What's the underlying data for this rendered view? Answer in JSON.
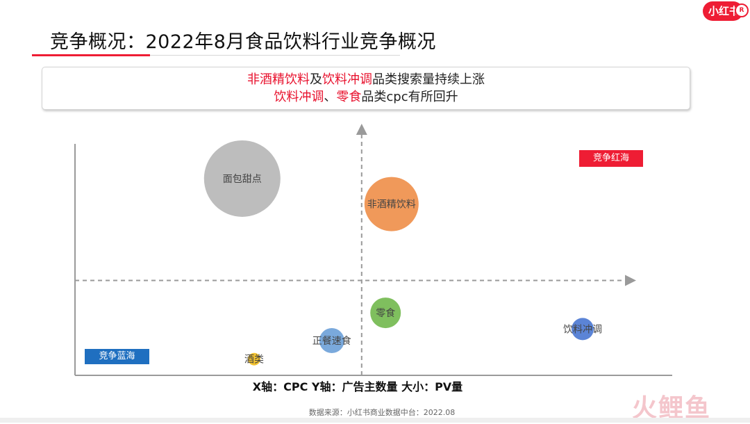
{
  "brand": {
    "logo": "小红书",
    "badge": "R"
  },
  "title": "竞争概况：2022年8月食品饮料行业竞争概况",
  "callout": {
    "line1": [
      {
        "text": "非酒精饮料",
        "highlight": true
      },
      {
        "text": "及",
        "highlight": false
      },
      {
        "text": "饮料冲调",
        "highlight": true
      },
      {
        "text": "品类搜索量持续上涨",
        "highlight": false
      }
    ],
    "line2": [
      {
        "text": "饮料冲调",
        "highlight": true
      },
      {
        "text": "、",
        "highlight": false
      },
      {
        "text": "零食",
        "highlight": true
      },
      {
        "text": "品类cpc有所回升",
        "highlight": false
      }
    ]
  },
  "quadrant_tags": {
    "red_ocean": "竞争红海",
    "blue_ocean": "竞争蓝海"
  },
  "axis_note": "X轴：CPC  Y轴：广告主数量  大小：PV量",
  "source": "数据来源：小红书商业数据中台：2022.08",
  "watermark": "火鲤鱼",
  "colors": {
    "accent": "#ee1d34",
    "blue_tag": "#1f6fc0"
  },
  "chart_data": {
    "type": "scatter",
    "title": "",
    "xlabel": "CPC",
    "ylabel": "广告主数量",
    "size_label": "PV量",
    "xlim": [
      0,
      100
    ],
    "ylim": [
      0,
      100
    ],
    "grid": false,
    "quadrant_divider": {
      "x": 48,
      "y": 41
    },
    "series": [
      {
        "name": "面包甜点",
        "x": 28,
        "y": 85,
        "size": 55,
        "color": "#bdbdbd"
      },
      {
        "name": "非酒精饮料",
        "x": 53,
        "y": 74,
        "size": 39,
        "color": "#f0995a"
      },
      {
        "name": "零食",
        "x": 52,
        "y": 27,
        "size": 22,
        "color": "#7fbf5e"
      },
      {
        "name": "饮料冲调",
        "x": 85,
        "y": 20,
        "size": 16,
        "color": "#5b84d6"
      },
      {
        "name": "正餐速食",
        "x": 43,
        "y": 15,
        "size": 18,
        "color": "#7aa9dc"
      },
      {
        "name": "酒类",
        "x": 30,
        "y": 7,
        "size": 9,
        "color": "#f2c230"
      }
    ]
  }
}
